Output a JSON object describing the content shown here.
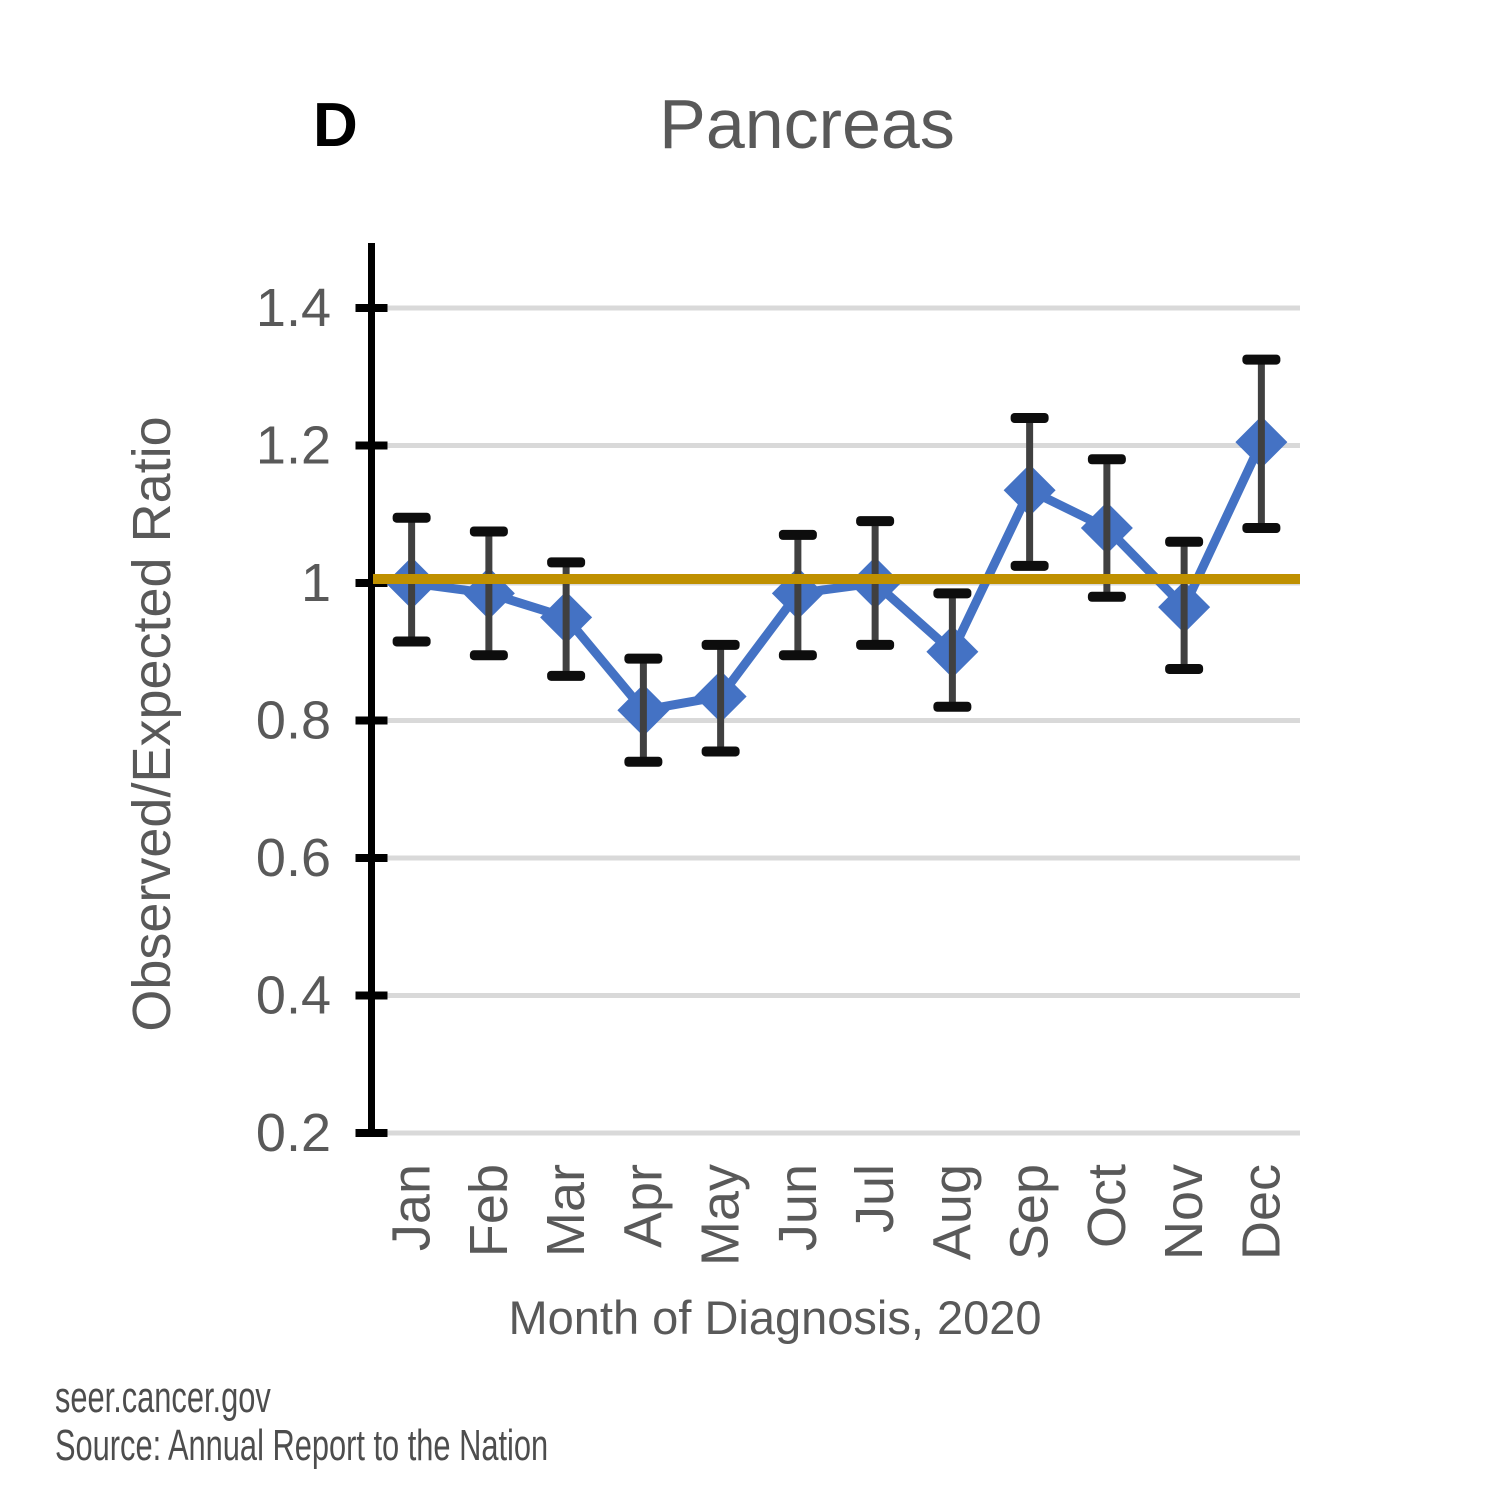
{
  "chart_data": {
    "type": "line",
    "panel_label": "D",
    "title": "Pancreas",
    "xlabel": "Month of Diagnosis, 2020",
    "ylabel": "Observed/Expected Ratio",
    "categories": [
      "Jan",
      "Feb",
      "Mar",
      "Apr",
      "May",
      "Jun",
      "Jul",
      "Aug",
      "Sep",
      "Oct",
      "Nov",
      "Dec"
    ],
    "series": [
      {
        "name": "Observed/Expected Ratio",
        "values": [
          1.0,
          0.985,
          0.95,
          0.815,
          0.835,
          0.985,
          1.0,
          0.9,
          1.135,
          1.08,
          0.965,
          1.205
        ],
        "ci_low": [
          0.915,
          0.895,
          0.865,
          0.74,
          0.755,
          0.895,
          0.91,
          0.82,
          1.025,
          0.98,
          0.875,
          1.08
        ],
        "ci_high": [
          1.095,
          1.075,
          1.03,
          0.89,
          0.91,
          1.07,
          1.09,
          0.985,
          1.24,
          1.18,
          1.06,
          1.325
        ]
      }
    ],
    "reference_line": 1.0,
    "ylim": [
      0.2,
      1.45
    ],
    "yticks": [
      1.4,
      1.2,
      1,
      0.8,
      0.6,
      0.4,
      0.2
    ],
    "ytick_labels": [
      "1.4",
      "1.2",
      "1",
      "0.8",
      "0.6",
      "0.4",
      "0.2"
    ],
    "grid": true,
    "legend": false,
    "marker": "diamond",
    "colors": {
      "series": "#4472C4",
      "reference": "#BF9000",
      "error_bar_line": "#404040",
      "error_bar_cap": "#0D0D0D",
      "gridline": "#D9D9D9",
      "axis": "#000000",
      "text": "#595959"
    }
  },
  "footer": {
    "url": "seer.cancer.gov",
    "source": "Source: Annual Report to the Nation"
  }
}
